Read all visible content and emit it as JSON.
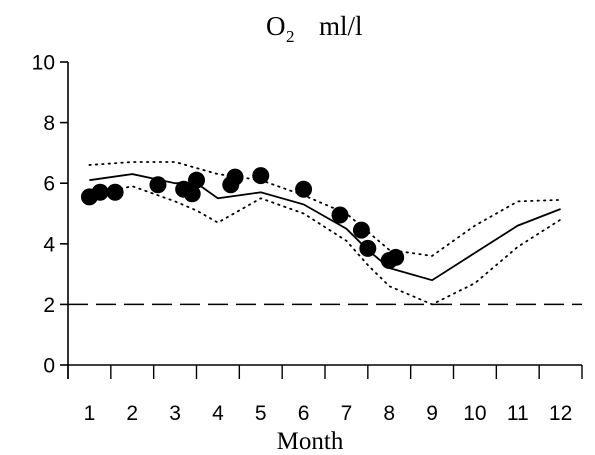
{
  "chart_data": {
    "type": "line",
    "title": {
      "main": "O",
      "subscript": "2",
      "units": "ml/l"
    },
    "xlabel": "Month",
    "ylabel": "",
    "xlim": [
      0.5,
      12.5
    ],
    "ylim": [
      0,
      10
    ],
    "x_ticks": [
      "1",
      "2",
      "3",
      "4",
      "5",
      "6",
      "7",
      "8",
      "9",
      "10",
      "11",
      "12"
    ],
    "y_ticks": [
      "0",
      "2",
      "4",
      "6",
      "8",
      "10"
    ],
    "grid": false,
    "legend": "none",
    "colors": {
      "ink": "#000000",
      "background": "#ffffff"
    },
    "series": [
      {
        "style": "solid-line",
        "points": [
          {
            "x": 1.0,
            "y": 6.1
          },
          {
            "x": 2.0,
            "y": 6.3
          },
          {
            "x": 3.0,
            "y": 6.0
          },
          {
            "x": 3.5,
            "y": 6.0
          },
          {
            "x": 4.0,
            "y": 5.5
          },
          {
            "x": 5.0,
            "y": 5.7
          },
          {
            "x": 6.0,
            "y": 5.3
          },
          {
            "x": 7.0,
            "y": 4.5
          },
          {
            "x": 7.5,
            "y": 3.8
          },
          {
            "x": 8.0,
            "y": 3.2
          },
          {
            "x": 9.0,
            "y": 2.8
          },
          {
            "x": 10.0,
            "y": 3.7
          },
          {
            "x": 11.0,
            "y": 4.6
          },
          {
            "x": 12.0,
            "y": 5.15
          }
        ]
      },
      {
        "style": "dotted-upper",
        "points": [
          {
            "x": 1.0,
            "y": 6.6
          },
          {
            "x": 2.0,
            "y": 6.7
          },
          {
            "x": 3.0,
            "y": 6.7
          },
          {
            "x": 4.0,
            "y": 6.3
          },
          {
            "x": 5.0,
            "y": 6.1
          },
          {
            "x": 6.0,
            "y": 5.6
          },
          {
            "x": 7.0,
            "y": 5.0
          },
          {
            "x": 7.5,
            "y": 4.4
          },
          {
            "x": 8.0,
            "y": 3.8
          },
          {
            "x": 9.0,
            "y": 3.6
          },
          {
            "x": 10.0,
            "y": 4.6
          },
          {
            "x": 11.0,
            "y": 5.4
          },
          {
            "x": 12.0,
            "y": 5.45
          }
        ]
      },
      {
        "style": "dotted-lower",
        "points": [
          {
            "x": 1.0,
            "y": 5.6
          },
          {
            "x": 2.0,
            "y": 5.9
          },
          {
            "x": 3.0,
            "y": 5.4
          },
          {
            "x": 3.5,
            "y": 5.1
          },
          {
            "x": 4.0,
            "y": 4.7
          },
          {
            "x": 5.0,
            "y": 5.5
          },
          {
            "x": 6.0,
            "y": 5.0
          },
          {
            "x": 7.0,
            "y": 4.1
          },
          {
            "x": 7.5,
            "y": 3.3
          },
          {
            "x": 8.0,
            "y": 2.6
          },
          {
            "x": 9.0,
            "y": 2.0
          },
          {
            "x": 10.0,
            "y": 2.7
          },
          {
            "x": 11.0,
            "y": 3.9
          },
          {
            "x": 12.0,
            "y": 4.8
          }
        ]
      },
      {
        "style": "dashed-reference",
        "points": [
          {
            "x": 0.5,
            "y": 2.0
          },
          {
            "x": 12.5,
            "y": 2.0
          }
        ]
      },
      {
        "style": "scatter-dots",
        "points": [
          {
            "x": 1.0,
            "y": 5.55
          },
          {
            "x": 1.25,
            "y": 5.7
          },
          {
            "x": 1.6,
            "y": 5.7
          },
          {
            "x": 2.6,
            "y": 5.95
          },
          {
            "x": 3.2,
            "y": 5.8
          },
          {
            "x": 3.4,
            "y": 5.65
          },
          {
            "x": 3.5,
            "y": 6.1
          },
          {
            "x": 4.3,
            "y": 5.95
          },
          {
            "x": 4.4,
            "y": 6.2
          },
          {
            "x": 5.0,
            "y": 6.25
          },
          {
            "x": 6.0,
            "y": 5.8
          },
          {
            "x": 6.85,
            "y": 4.95
          },
          {
            "x": 7.35,
            "y": 4.45
          },
          {
            "x": 7.5,
            "y": 3.85
          },
          {
            "x": 8.0,
            "y": 3.45
          },
          {
            "x": 8.15,
            "y": 3.55
          }
        ]
      }
    ]
  }
}
